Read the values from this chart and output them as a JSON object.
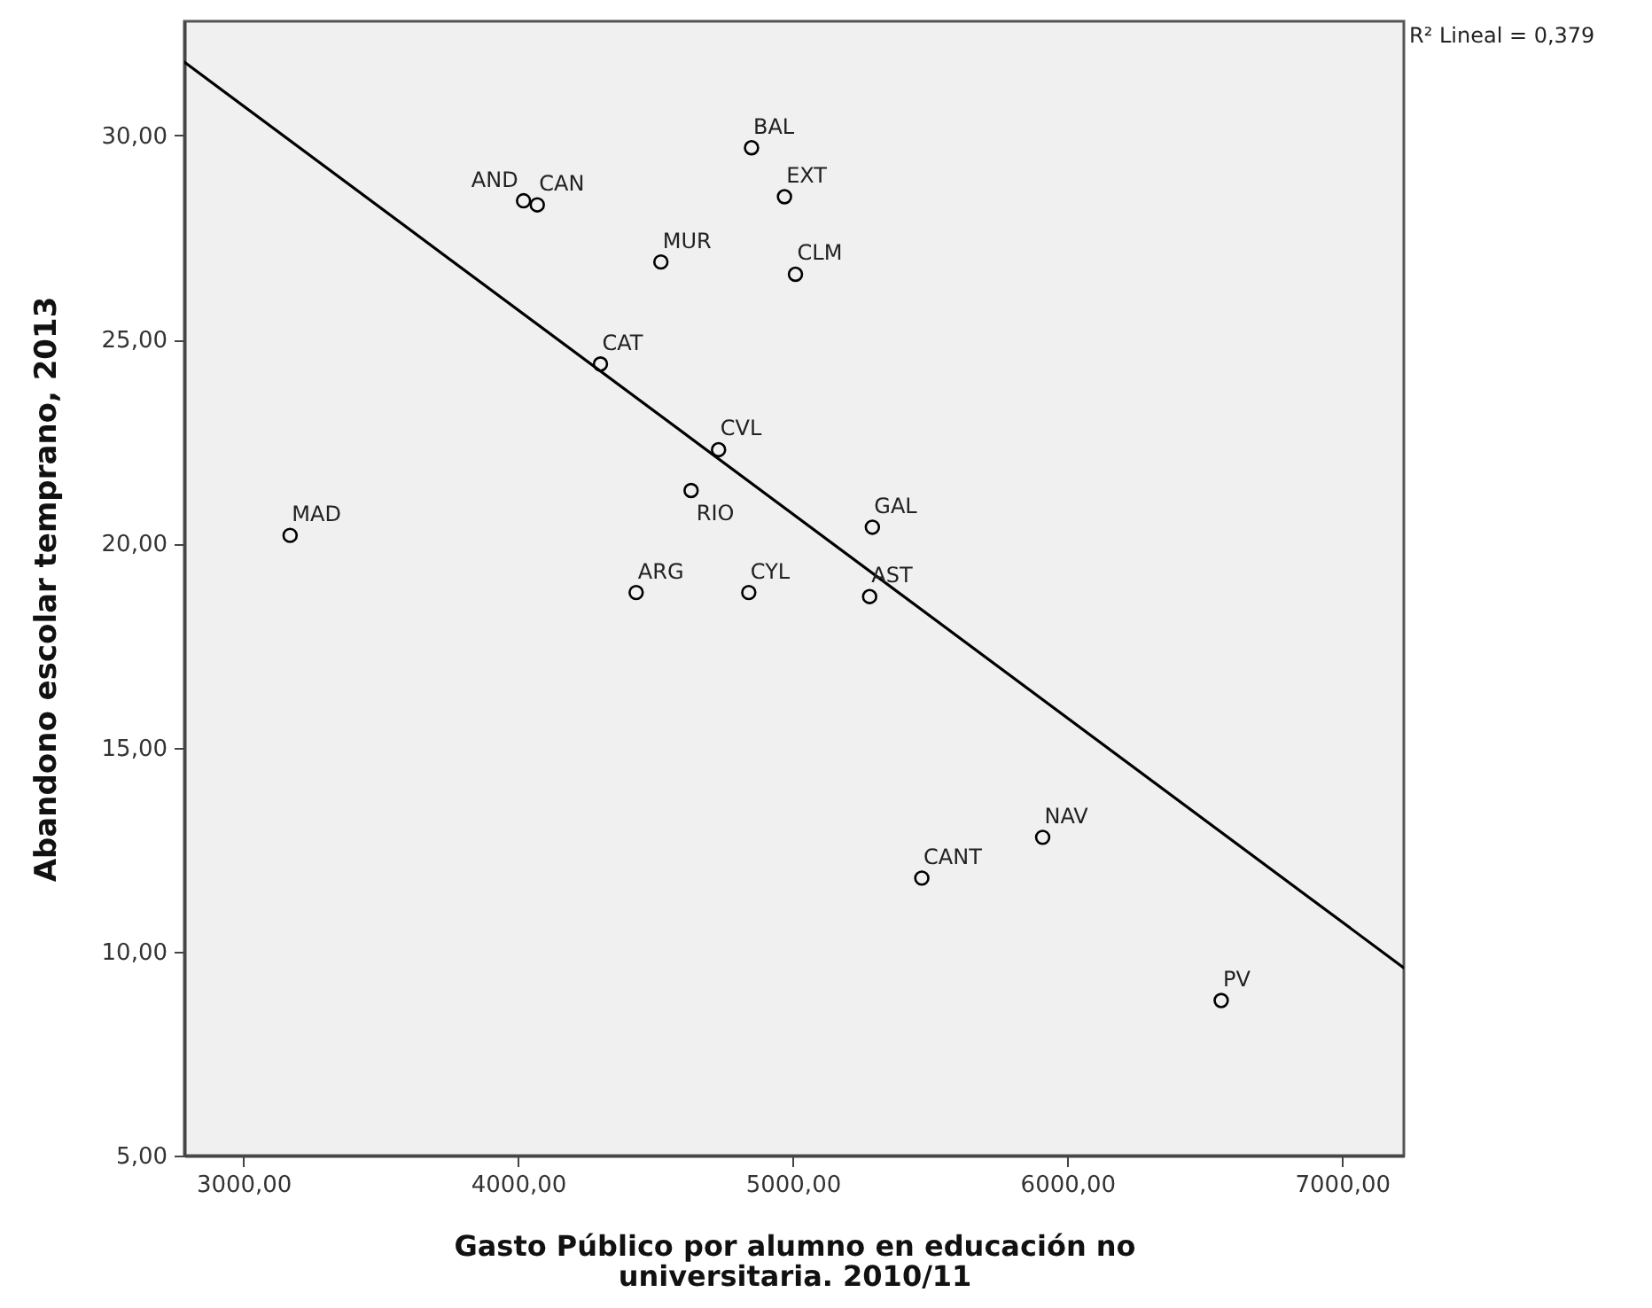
{
  "chart_data": {
    "type": "scatter",
    "xlabel": "Gasto Público por alumno en educación no universitaria. 2010/11",
    "ylabel": "Abandono escolar temprano, 2013",
    "series": [
      {
        "color": "#000000",
        "marker": "circle",
        "x": [
          3170,
          4020,
          4070,
          4300,
          4430,
          4520,
          4630,
          4730,
          4840,
          4850,
          4970,
          5010,
          5280,
          5290,
          5470,
          5910,
          6560
        ],
        "values": [
          20.2,
          28.4,
          28.3,
          24.4,
          18.8,
          26.9,
          21.3,
          22.3,
          18.8,
          29.7,
          28.5,
          26.6,
          18.7,
          20.4,
          11.8,
          12.8,
          8.8
        ]
      },
      {
        "type": "line",
        "color": "#000000",
        "line_style": "solid",
        "x": [
          2785,
          7225
        ],
        "values": [
          31.8,
          9.6
        ]
      }
    ],
    "xlim": [
      2785,
      7225
    ],
    "ylim": [
      5,
      32.8
    ],
    "xticks": [
      {
        "value": 3000,
        "label": "3000,00"
      },
      {
        "value": 4000,
        "label": "4000,00"
      },
      {
        "value": 5000,
        "label": "5000,00"
      },
      {
        "value": 6000,
        "label": "6000,00"
      },
      {
        "value": 7000,
        "label": "7000,00"
      }
    ],
    "yticks": [
      {
        "value": 5,
        "label": "5,00"
      },
      {
        "value": 10,
        "label": "10,00"
      },
      {
        "value": 15,
        "label": "15,00"
      },
      {
        "value": 20,
        "label": "20,00"
      },
      {
        "value": 25,
        "label": "25,00"
      },
      {
        "value": 30,
        "label": "30,00"
      }
    ],
    "annotations": [
      {
        "text": "MAD",
        "x": 3170,
        "y": 20.2
      },
      {
        "text": "AND",
        "x": 4020,
        "y": 28.4
      },
      {
        "text": "CAN",
        "x": 4070,
        "y": 28.3
      },
      {
        "text": "CAT",
        "x": 4300,
        "y": 24.4
      },
      {
        "text": "ARG",
        "x": 4430,
        "y": 18.8
      },
      {
        "text": "MUR",
        "x": 4520,
        "y": 26.9
      },
      {
        "text": "RIO",
        "x": 4630,
        "y": 21.3
      },
      {
        "text": "CVL",
        "x": 4730,
        "y": 22.3
      },
      {
        "text": "CYL",
        "x": 4840,
        "y": 18.8
      },
      {
        "text": "BAL",
        "x": 4850,
        "y": 29.7
      },
      {
        "text": "EXT",
        "x": 4970,
        "y": 28.5
      },
      {
        "text": "CLM",
        "x": 5010,
        "y": 26.6
      },
      {
        "text": "AST",
        "x": 5280,
        "y": 18.7
      },
      {
        "text": "GAL",
        "x": 5290,
        "y": 20.4
      },
      {
        "text": "CANT",
        "x": 5470,
        "y": 11.8
      },
      {
        "text": "NAV",
        "x": 5910,
        "y": 12.8
      },
      {
        "text": "PV",
        "x": 6560,
        "y": 8.8
      },
      "R² Lineal = 0,379"
    ]
  }
}
